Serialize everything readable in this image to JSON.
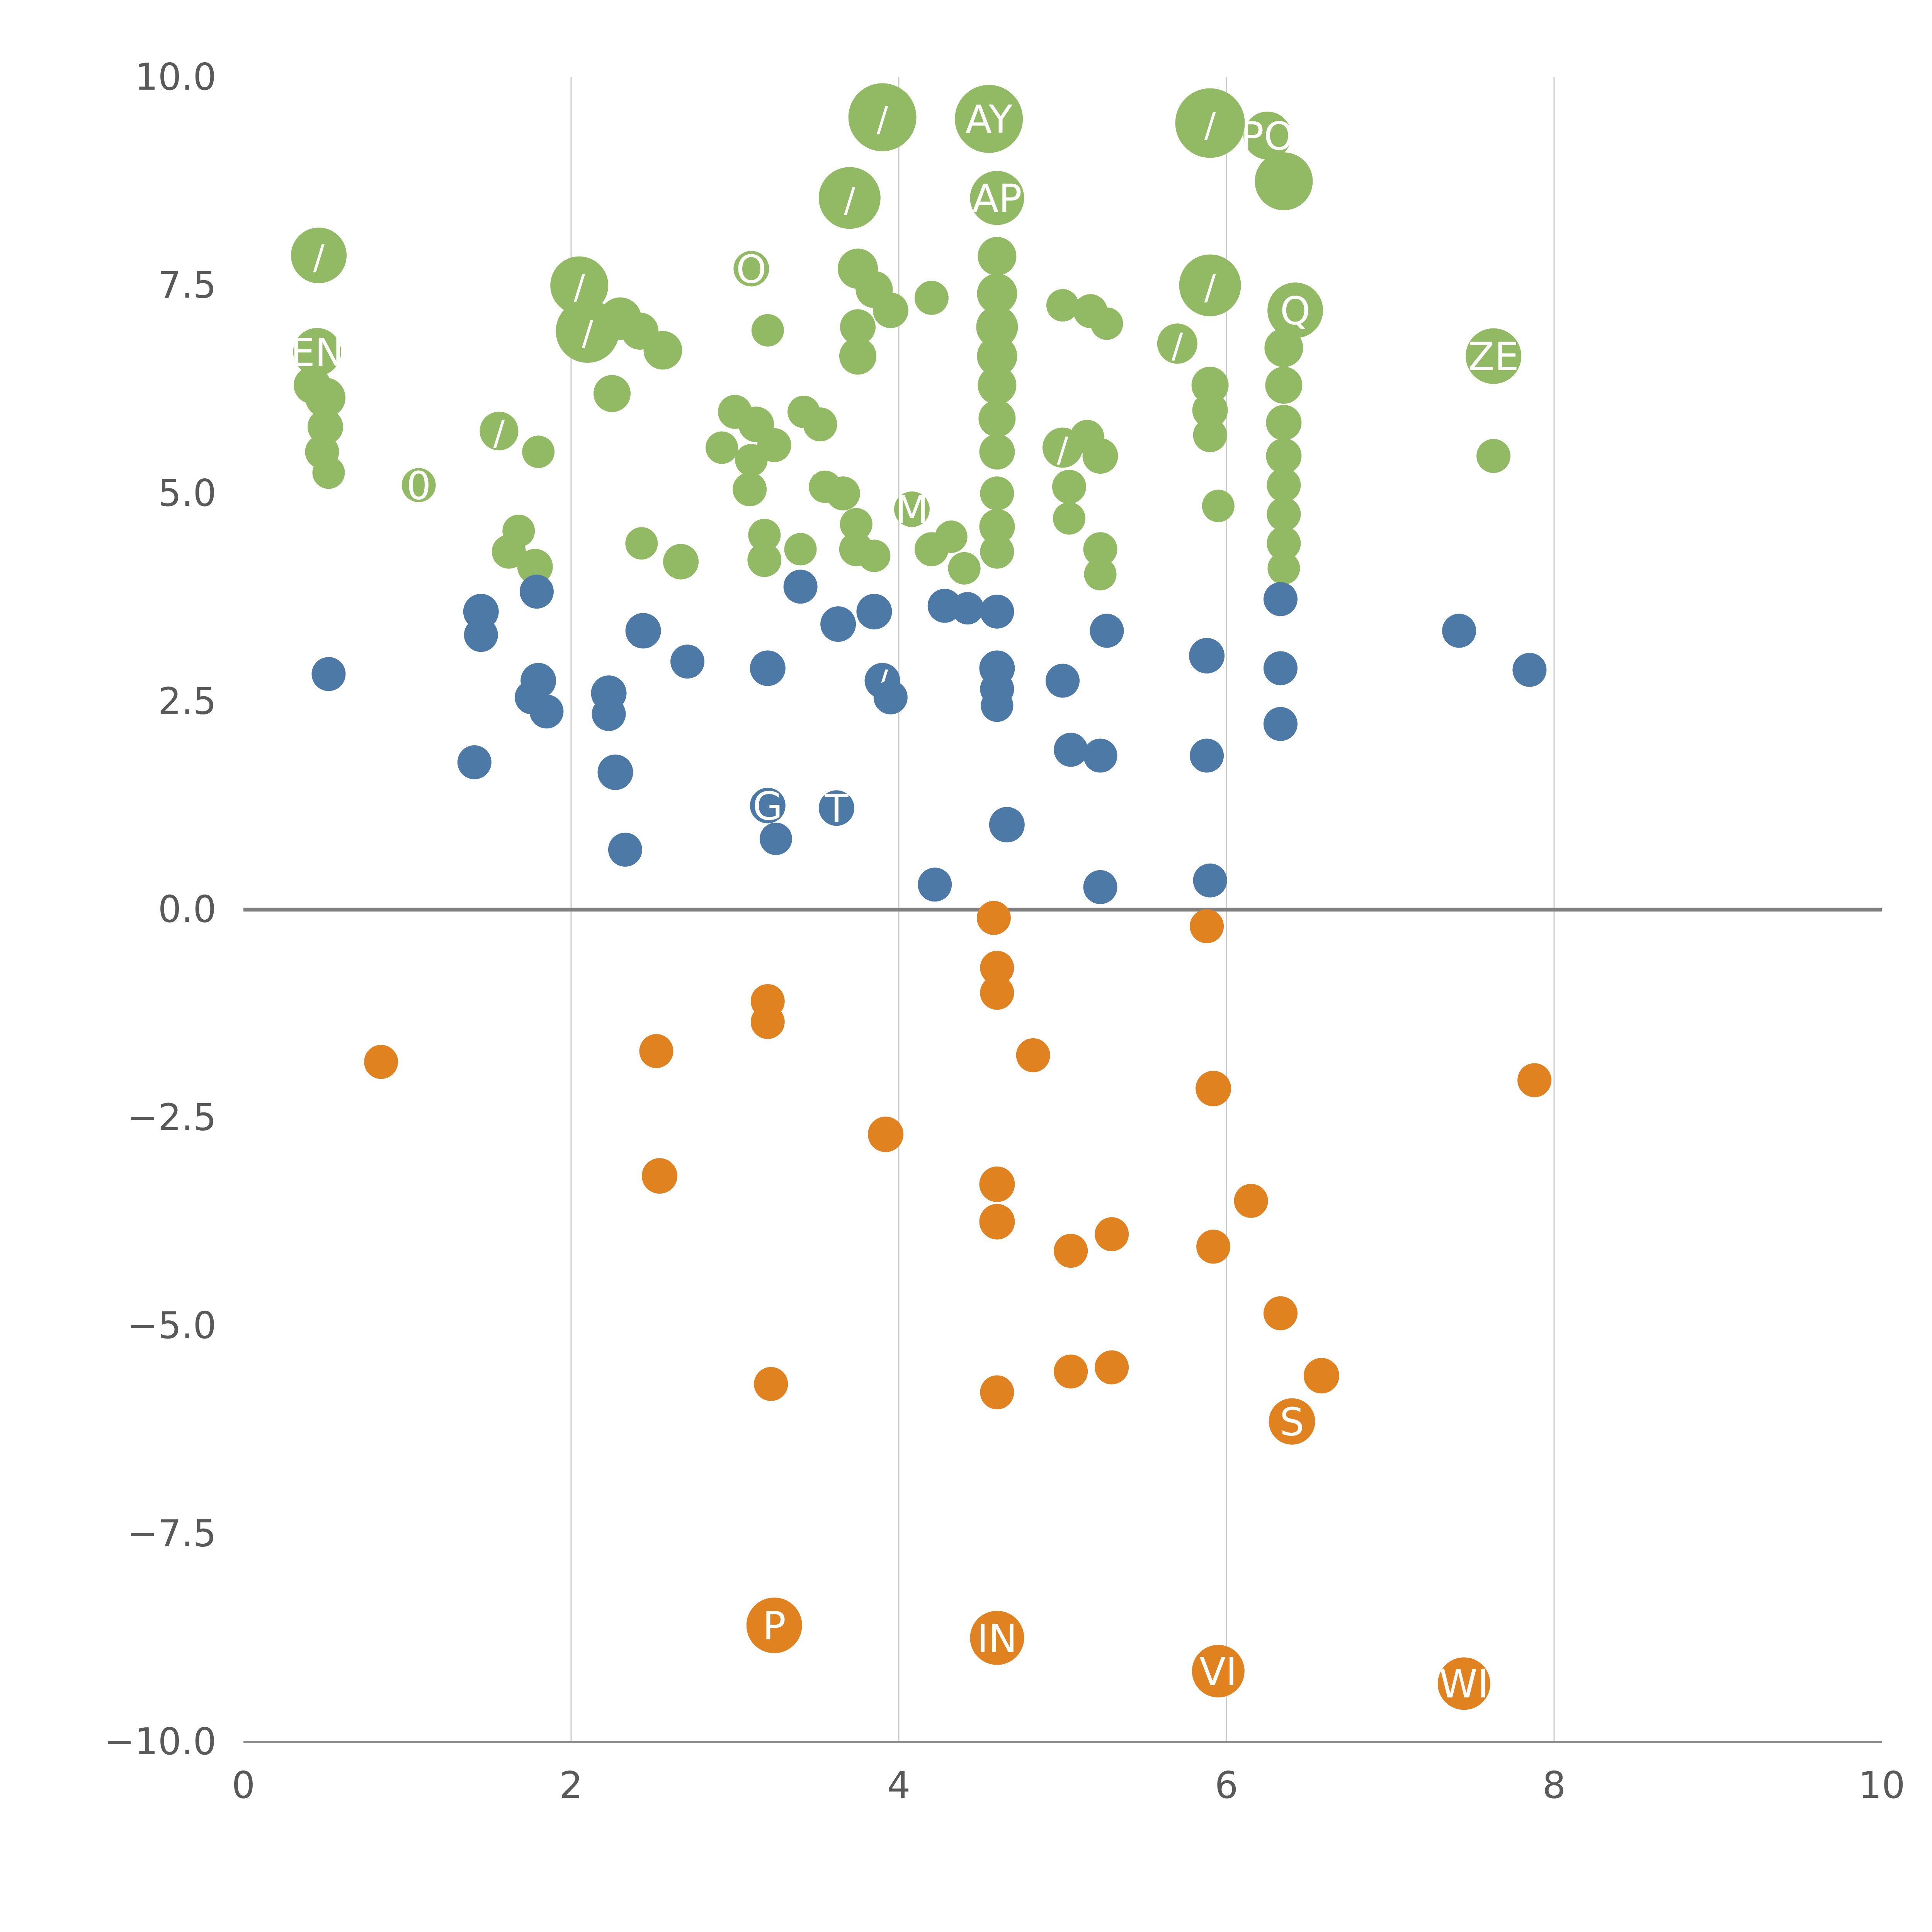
{
  "chart_data": {
    "type": "scatter",
    "title": "",
    "xlabel": "",
    "ylabel": "",
    "xlim": [
      0,
      10
    ],
    "ylim": [
      -10,
      10
    ],
    "x_tick_values": [
      0,
      2,
      4,
      6,
      8,
      10
    ],
    "x_tick_labels": [
      "0",
      "2",
      "4",
      "6",
      "8",
      "10"
    ],
    "y_tick_values": [
      10.0,
      7.5,
      5.0,
      2.5,
      0.0,
      -2.5,
      -5.0,
      -7.5,
      -10.0
    ],
    "y_tick_labels": [
      "10.0",
      "7.5",
      "5.0",
      "2.5",
      "0.0",
      "−2.5",
      "−5.0",
      "−7.5",
      "−10.0"
    ],
    "grid_x": [
      2,
      4,
      6,
      8
    ],
    "grid_color": "#c9c9c9",
    "zero_line": true,
    "zero_line_color": "#808080",
    "axis_color": "#8a8a8a",
    "tick_label_color": "#595959",
    "legend": "none",
    "points_format": [
      "x",
      "y",
      "r",
      "label"
    ],
    "series": [
      {
        "name": "green-positive-high",
        "color": "#92b964",
        "label_color": "#ffffff",
        "points": [
          [
            0.46,
            7.86,
            72,
            "/"
          ],
          [
            0.45,
            6.7,
            62,
            "EN"
          ],
          [
            0.42,
            6.3,
            48,
            ""
          ],
          [
            0.5,
            6.15,
            52,
            ""
          ],
          [
            0.5,
            5.8,
            46,
            ""
          ],
          [
            0.48,
            5.5,
            44,
            ""
          ],
          [
            0.52,
            5.25,
            42,
            ""
          ],
          [
            1.07,
            5.1,
            44,
            "0"
          ],
          [
            1.56,
            5.75,
            50,
            "/"
          ],
          [
            1.8,
            5.5,
            42,
            ""
          ],
          [
            1.68,
            4.55,
            42,
            ""
          ],
          [
            1.62,
            4.3,
            44,
            ""
          ],
          [
            1.78,
            4.12,
            46,
            ""
          ],
          [
            2.05,
            7.5,
            75,
            "/"
          ],
          [
            2.1,
            6.95,
            82,
            "/"
          ],
          [
            2.3,
            7.1,
            55,
            ""
          ],
          [
            2.42,
            6.95,
            48,
            ""
          ],
          [
            2.56,
            6.72,
            50,
            ""
          ],
          [
            2.25,
            6.2,
            48,
            ""
          ],
          [
            2.43,
            4.4,
            42,
            ""
          ],
          [
            2.67,
            4.18,
            46,
            ""
          ],
          [
            3.0,
            5.98,
            44,
            ""
          ],
          [
            3.13,
            5.83,
            46,
            ""
          ],
          [
            2.92,
            5.55,
            42,
            ""
          ],
          [
            3.24,
            5.58,
            44,
            ""
          ],
          [
            3.42,
            5.98,
            42,
            ""
          ],
          [
            3.52,
            5.83,
            44,
            ""
          ],
          [
            3.1,
            5.4,
            42,
            ""
          ],
          [
            3.09,
            5.05,
            44,
            ""
          ],
          [
            3.18,
            4.5,
            42,
            ""
          ],
          [
            3.18,
            4.2,
            44,
            ""
          ],
          [
            3.4,
            4.33,
            42,
            ""
          ],
          [
            3.1,
            7.7,
            46,
            "O"
          ],
          [
            3.2,
            6.96,
            42,
            ""
          ],
          [
            3.9,
            9.52,
            88,
            "/"
          ],
          [
            3.7,
            8.55,
            80,
            "/"
          ],
          [
            3.75,
            7.7,
            52,
            ""
          ],
          [
            3.85,
            7.45,
            48,
            ""
          ],
          [
            4.2,
            7.35,
            44,
            ""
          ],
          [
            3.95,
            7.2,
            46,
            ""
          ],
          [
            3.75,
            7.0,
            46,
            ""
          ],
          [
            3.75,
            6.65,
            48,
            ""
          ],
          [
            4.55,
            9.5,
            88,
            "AY"
          ],
          [
            4.6,
            8.55,
            70,
            "AP"
          ],
          [
            4.6,
            7.85,
            50,
            ""
          ],
          [
            4.6,
            7.4,
            52,
            ""
          ],
          [
            4.6,
            7.0,
            54,
            ""
          ],
          [
            4.6,
            6.65,
            52,
            ""
          ],
          [
            4.6,
            6.3,
            50,
            ""
          ],
          [
            4.6,
            5.9,
            48,
            ""
          ],
          [
            4.6,
            5.5,
            46,
            ""
          ],
          [
            4.6,
            5.0,
            44,
            ""
          ],
          [
            4.6,
            4.6,
            46,
            ""
          ],
          [
            4.6,
            4.3,
            44,
            ""
          ],
          [
            3.55,
            5.08,
            42,
            ""
          ],
          [
            3.66,
            5.0,
            44,
            ""
          ],
          [
            3.74,
            4.63,
            42,
            ""
          ],
          [
            3.74,
            4.33,
            44,
            ""
          ],
          [
            3.85,
            4.25,
            42,
            ""
          ],
          [
            4.08,
            4.81,
            46,
            "M"
          ],
          [
            4.2,
            4.33,
            44,
            ""
          ],
          [
            4.32,
            4.48,
            42,
            ""
          ],
          [
            4.4,
            4.1,
            42,
            ""
          ],
          [
            5.0,
            7.26,
            42,
            ""
          ],
          [
            5.17,
            7.19,
            44,
            ""
          ],
          [
            5.27,
            7.04,
            42,
            ""
          ],
          [
            5.0,
            5.55,
            52,
            "/"
          ],
          [
            5.15,
            5.68,
            44,
            ""
          ],
          [
            5.23,
            5.45,
            46,
            ""
          ],
          [
            5.04,
            5.08,
            44,
            ""
          ],
          [
            5.04,
            4.7,
            42,
            ""
          ],
          [
            5.23,
            4.33,
            44,
            ""
          ],
          [
            5.23,
            4.03,
            42,
            ""
          ],
          [
            5.9,
            9.45,
            90,
            "/"
          ],
          [
            6.25,
            9.3,
            62,
            "PO"
          ],
          [
            6.35,
            8.75,
            75,
            ""
          ],
          [
            5.9,
            7.5,
            80,
            "/"
          ],
          [
            6.42,
            7.2,
            72,
            "Q"
          ],
          [
            5.7,
            6.8,
            52,
            "/"
          ],
          [
            5.9,
            6.3,
            48,
            ""
          ],
          [
            5.9,
            6.0,
            46,
            ""
          ],
          [
            5.9,
            5.7,
            44,
            ""
          ],
          [
            6.35,
            6.75,
            50,
            ""
          ],
          [
            6.35,
            6.3,
            48,
            ""
          ],
          [
            6.35,
            5.85,
            46,
            ""
          ],
          [
            6.35,
            5.45,
            46,
            ""
          ],
          [
            6.35,
            5.1,
            44,
            ""
          ],
          [
            6.35,
            4.75,
            44,
            ""
          ],
          [
            6.35,
            4.4,
            44,
            ""
          ],
          [
            6.35,
            4.1,
            42,
            ""
          ],
          [
            5.95,
            4.85,
            42,
            ""
          ],
          [
            7.63,
            6.65,
            72,
            "ZE"
          ],
          [
            7.63,
            5.45,
            44,
            ""
          ]
        ]
      },
      {
        "name": "blue-positive-low",
        "color": "#4d79a7",
        "label_color": "#ffffff",
        "points": [
          [
            0.52,
            2.83,
            44,
            ""
          ],
          [
            1.45,
            3.58,
            46,
            ""
          ],
          [
            1.45,
            3.3,
            44,
            ""
          ],
          [
            1.41,
            1.77,
            44,
            ""
          ],
          [
            1.79,
            3.82,
            44,
            ""
          ],
          [
            1.8,
            2.75,
            46,
            ""
          ],
          [
            1.76,
            2.55,
            44,
            ""
          ],
          [
            1.85,
            2.38,
            44,
            ""
          ],
          [
            2.23,
            2.6,
            46,
            ""
          ],
          [
            2.23,
            2.35,
            44,
            ""
          ],
          [
            2.27,
            1.65,
            46,
            ""
          ],
          [
            2.33,
            0.72,
            44,
            ""
          ],
          [
            2.44,
            3.35,
            46,
            ""
          ],
          [
            2.71,
            2.98,
            44,
            ""
          ],
          [
            3.2,
            2.9,
            46,
            ""
          ],
          [
            3.2,
            1.25,
            46,
            "G"
          ],
          [
            3.25,
            0.85,
            42,
            ""
          ],
          [
            3.4,
            3.88,
            44,
            ""
          ],
          [
            3.63,
            3.43,
            46,
            ""
          ],
          [
            3.62,
            1.22,
            46,
            "T"
          ],
          [
            3.85,
            3.58,
            46,
            ""
          ],
          [
            3.9,
            2.75,
            46,
            "/"
          ],
          [
            3.95,
            2.55,
            44,
            ""
          ],
          [
            4.22,
            0.3,
            44,
            ""
          ],
          [
            4.28,
            3.65,
            44,
            ""
          ],
          [
            4.42,
            3.62,
            42,
            ""
          ],
          [
            4.6,
            3.58,
            44,
            ""
          ],
          [
            4.6,
            2.9,
            46,
            ""
          ],
          [
            4.6,
            2.65,
            44,
            ""
          ],
          [
            4.6,
            2.45,
            42,
            ""
          ],
          [
            4.66,
            1.02,
            46,
            ""
          ],
          [
            5.0,
            2.75,
            44,
            ""
          ],
          [
            5.05,
            1.92,
            44,
            ""
          ],
          [
            5.23,
            1.85,
            44,
            ""
          ],
          [
            5.23,
            0.27,
            44,
            ""
          ],
          [
            5.27,
            3.35,
            44,
            ""
          ],
          [
            5.88,
            3.05,
            46,
            ""
          ],
          [
            5.88,
            1.85,
            44,
            ""
          ],
          [
            5.9,
            0.35,
            44,
            ""
          ],
          [
            6.33,
            3.73,
            44,
            ""
          ],
          [
            6.33,
            2.9,
            44,
            ""
          ],
          [
            6.33,
            2.23,
            44,
            ""
          ],
          [
            7.42,
            3.35,
            44,
            ""
          ],
          [
            7.85,
            2.88,
            44,
            ""
          ]
        ]
      },
      {
        "name": "orange-negative",
        "color": "#e0821f",
        "label_color": "#ffffff",
        "points": [
          [
            0.84,
            -1.83,
            44,
            ""
          ],
          [
            2.52,
            -1.7,
            44,
            ""
          ],
          [
            2.54,
            -3.2,
            46,
            ""
          ],
          [
            3.2,
            -1.1,
            44,
            ""
          ],
          [
            3.2,
            -1.35,
            44,
            ""
          ],
          [
            3.22,
            -5.7,
            44,
            ""
          ],
          [
            3.24,
            -8.6,
            72,
            "P"
          ],
          [
            3.92,
            -2.7,
            46,
            ""
          ],
          [
            4.58,
            -0.1,
            44,
            ""
          ],
          [
            4.6,
            -0.7,
            44,
            ""
          ],
          [
            4.6,
            -1.0,
            44,
            ""
          ],
          [
            4.6,
            -3.3,
            46,
            ""
          ],
          [
            4.6,
            -3.75,
            46,
            ""
          ],
          [
            4.6,
            -5.8,
            44,
            ""
          ],
          [
            4.6,
            -8.75,
            70,
            "IN"
          ],
          [
            4.82,
            -1.75,
            44,
            ""
          ],
          [
            5.05,
            -4.1,
            44,
            ""
          ],
          [
            5.05,
            -5.55,
            44,
            ""
          ],
          [
            5.3,
            -5.5,
            44,
            ""
          ],
          [
            5.3,
            -3.9,
            44,
            ""
          ],
          [
            5.88,
            -0.2,
            44,
            ""
          ],
          [
            5.92,
            -2.15,
            46,
            ""
          ],
          [
            5.92,
            -4.05,
            44,
            ""
          ],
          [
            6.15,
            -3.5,
            44,
            ""
          ],
          [
            6.33,
            -4.85,
            44,
            ""
          ],
          [
            6.4,
            -6.15,
            60,
            "S"
          ],
          [
            6.58,
            -5.6,
            46,
            ""
          ],
          [
            5.95,
            -9.15,
            68,
            "VI"
          ],
          [
            7.45,
            -9.3,
            68,
            "WI"
          ],
          [
            7.88,
            -2.05,
            44,
            ""
          ]
        ]
      }
    ]
  }
}
